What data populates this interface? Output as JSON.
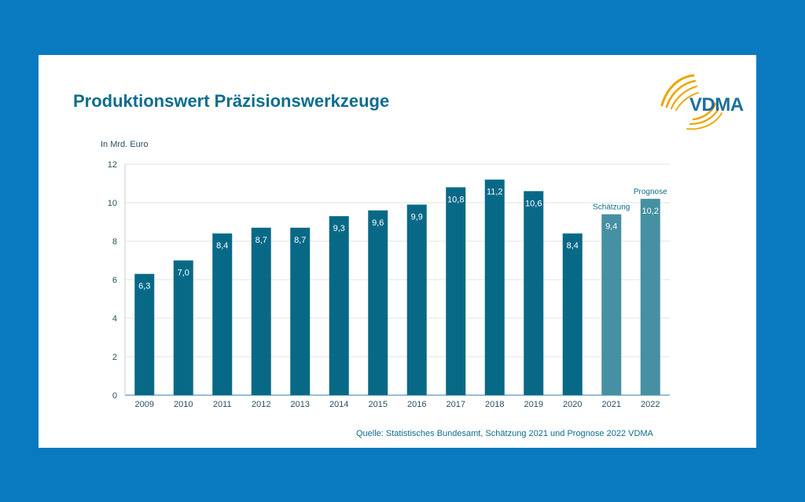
{
  "header": {
    "title": "Produktionswert Präzisionswerkzeuge",
    "logo_text": "VDMA"
  },
  "colors": {
    "background": "#0979c0",
    "title": "#0c6d8e",
    "bar_actual": "#086987",
    "bar_estimate": "#4590a2",
    "logo_swoosh": "#f0a400",
    "logo_text": "#1d6f9f"
  },
  "footer": {
    "source": "Quelle: Statistisches Bundesamt, Schätzung 2021 und Prognose 2022 VDMA"
  },
  "chart_data": {
    "type": "bar",
    "title": "Produktionswert Präzisionswerkzeuge",
    "ylabel": "In Mrd. Euro",
    "xlabel": "",
    "ylim": [
      0,
      12
    ],
    "yticks": [
      0,
      2,
      4,
      6,
      8,
      10,
      12
    ],
    "grid": true,
    "categories": [
      "2009",
      "2010",
      "2011",
      "2012",
      "2013",
      "2014",
      "2015",
      "2016",
      "2017",
      "2018",
      "2019",
      "2020",
      "2021",
      "2022"
    ],
    "values": [
      6.3,
      7.0,
      8.4,
      8.7,
      8.7,
      9.3,
      9.6,
      9.9,
      10.8,
      11.2,
      10.6,
      8.4,
      9.4,
      10.2
    ],
    "value_labels": [
      "6,3",
      "7,0",
      "8,4",
      "8,7",
      "8,7",
      "9,3",
      "9,6",
      "9,9",
      "10,8",
      "11,2",
      "10,6",
      "8,4",
      "9,4",
      "10,2"
    ],
    "annotations": [
      {
        "category": "2021",
        "text": "Schätzung"
      },
      {
        "category": "2022",
        "text": "Prognose"
      }
    ],
    "estimate_categories": [
      "2021",
      "2022"
    ]
  }
}
